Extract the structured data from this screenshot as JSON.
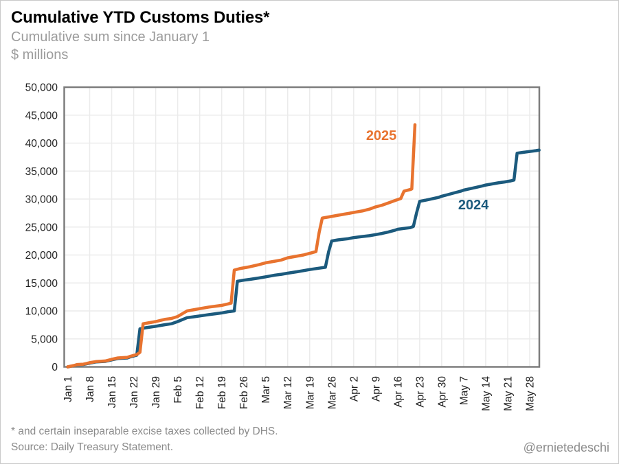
{
  "header": {
    "title": "Cumulative YTD Customs Duties*",
    "subtitle": "Cumulative sum since January 1",
    "units": "$ millions"
  },
  "footer": {
    "footnote": "* and certain inseparable excise taxes collected by DHS.",
    "source": "Source: Daily Treasury Statement.",
    "credit": "@ernietedeschi"
  },
  "chart_data": {
    "type": "line",
    "title": "Cumulative YTD Customs Duties*",
    "xlabel": "",
    "ylabel": "$ millions",
    "x_unit": "days since Jan 1",
    "xlim_days": [
      -1,
      150
    ],
    "ylim": [
      0,
      50000
    ],
    "grid": true,
    "legend_position": "inline-annotations",
    "x_tick_days": [
      0,
      7,
      14,
      21,
      28,
      35,
      42,
      49,
      56,
      63,
      70,
      77,
      84,
      91,
      98,
      105,
      112,
      119,
      126,
      133,
      140,
      147
    ],
    "x_tick_labels": [
      "Jan 1",
      "Jan 8",
      "Jan 15",
      "Jan 22",
      "Jan 29",
      "Feb 5",
      "Feb 12",
      "Feb 19",
      "Feb 26",
      "Mar 5",
      "Mar 12",
      "Mar 19",
      "Mar 26",
      "Apr 2",
      "Apr 9",
      "Apr 16",
      "Apr 23",
      "Apr 30",
      "May 7",
      "May 14",
      "May 21",
      "May 28"
    ],
    "y_ticks": [
      0,
      5000,
      10000,
      15000,
      20000,
      25000,
      30000,
      35000,
      40000,
      45000,
      50000
    ],
    "y_tick_labels": [
      "0",
      "5,000",
      "10,000",
      "15,000",
      "20,000",
      "25,000",
      "30,000",
      "35,000",
      "40,000",
      "45,000",
      "50,000"
    ],
    "style": {
      "grid_color": "#ebebeb",
      "border_color": "#7d7d7d",
      "tick_label_color": "#222222",
      "color_2025": "#e8732f",
      "color_2024": "#1b5a7d"
    },
    "annotations": [
      {
        "text": "2025",
        "day": 99.8,
        "value": 41400,
        "color": "#e8732f"
      },
      {
        "text": "2024",
        "day": 129.1,
        "value": 29000,
        "color": "#1b5a7d"
      }
    ],
    "series": [
      {
        "name": "2024",
        "color": "#1b5a7d",
        "points": [
          [
            0,
            0
          ],
          [
            2,
            220
          ],
          [
            3,
            380
          ],
          [
            5,
            430
          ],
          [
            7,
            680
          ],
          [
            9,
            880
          ],
          [
            12,
            980
          ],
          [
            14,
            1250
          ],
          [
            16,
            1500
          ],
          [
            19,
            1600
          ],
          [
            20,
            1800
          ],
          [
            22,
            2100
          ],
          [
            23,
            6800
          ],
          [
            25,
            7000
          ],
          [
            28,
            7250
          ],
          [
            31,
            7550
          ],
          [
            33,
            7700
          ],
          [
            35,
            8100
          ],
          [
            38,
            8800
          ],
          [
            40,
            8950
          ],
          [
            42,
            9100
          ],
          [
            45,
            9350
          ],
          [
            47,
            9500
          ],
          [
            49,
            9650
          ],
          [
            51,
            9850
          ],
          [
            53,
            10000
          ],
          [
            54,
            15300
          ],
          [
            56,
            15500
          ],
          [
            58,
            15650
          ],
          [
            61,
            15900
          ],
          [
            63,
            16100
          ],
          [
            66,
            16400
          ],
          [
            68,
            16550
          ],
          [
            70,
            16750
          ],
          [
            73,
            17000
          ],
          [
            75,
            17200
          ],
          [
            77,
            17400
          ],
          [
            80,
            17650
          ],
          [
            82,
            17800
          ],
          [
            83,
            20500
          ],
          [
            84,
            22500
          ],
          [
            86,
            22700
          ],
          [
            89,
            22900
          ],
          [
            91,
            23100
          ],
          [
            93,
            23250
          ],
          [
            96,
            23450
          ],
          [
            98,
            23650
          ],
          [
            100,
            23850
          ],
          [
            102,
            24100
          ],
          [
            104,
            24400
          ],
          [
            105,
            24600
          ],
          [
            107,
            24750
          ],
          [
            109,
            24900
          ],
          [
            110,
            25100
          ],
          [
            111,
            27500
          ],
          [
            112,
            29600
          ],
          [
            114,
            29800
          ],
          [
            116,
            30050
          ],
          [
            118,
            30300
          ],
          [
            119,
            30500
          ],
          [
            121,
            30800
          ],
          [
            123,
            31100
          ],
          [
            125,
            31400
          ],
          [
            126,
            31600
          ],
          [
            128,
            31850
          ],
          [
            130,
            32100
          ],
          [
            132,
            32350
          ],
          [
            133,
            32500
          ],
          [
            135,
            32700
          ],
          [
            137,
            32900
          ],
          [
            139,
            33050
          ],
          [
            141,
            33250
          ],
          [
            142,
            33400
          ],
          [
            143,
            38200
          ],
          [
            145,
            38350
          ],
          [
            147,
            38500
          ],
          [
            149,
            38650
          ],
          [
            150,
            38750
          ]
        ]
      },
      {
        "name": "2025",
        "color": "#e8732f",
        "points": [
          [
            0,
            0
          ],
          [
            2,
            250
          ],
          [
            3,
            420
          ],
          [
            5,
            480
          ],
          [
            7,
            750
          ],
          [
            9,
            950
          ],
          [
            12,
            1050
          ],
          [
            14,
            1350
          ],
          [
            16,
            1600
          ],
          [
            19,
            1700
          ],
          [
            20,
            1900
          ],
          [
            22,
            2200
          ],
          [
            23,
            2600
          ],
          [
            24,
            7700
          ],
          [
            26,
            7900
          ],
          [
            28,
            8100
          ],
          [
            31,
            8500
          ],
          [
            33,
            8650
          ],
          [
            35,
            9000
          ],
          [
            38,
            10000
          ],
          [
            40,
            10200
          ],
          [
            42,
            10400
          ],
          [
            45,
            10700
          ],
          [
            47,
            10850
          ],
          [
            49,
            11000
          ],
          [
            51,
            11250
          ],
          [
            52,
            11400
          ],
          [
            53,
            17300
          ],
          [
            55,
            17600
          ],
          [
            58,
            17900
          ],
          [
            61,
            18300
          ],
          [
            63,
            18600
          ],
          [
            66,
            18900
          ],
          [
            68,
            19100
          ],
          [
            70,
            19500
          ],
          [
            73,
            19800
          ],
          [
            75,
            20000
          ],
          [
            77,
            20300
          ],
          [
            79,
            20600
          ],
          [
            80,
            24000
          ],
          [
            81,
            26600
          ],
          [
            83,
            26800
          ],
          [
            86,
            27100
          ],
          [
            88,
            27300
          ],
          [
            90,
            27500
          ],
          [
            92,
            27700
          ],
          [
            94,
            27900
          ],
          [
            96,
            28200
          ],
          [
            98,
            28600
          ],
          [
            100,
            28900
          ],
          [
            102,
            29300
          ],
          [
            104,
            29700
          ],
          [
            105,
            29900
          ],
          [
            106,
            30100
          ],
          [
            107,
            31400
          ],
          [
            109,
            31700
          ],
          [
            109.5,
            31800
          ],
          [
            110.5,
            43300
          ]
        ]
      }
    ]
  }
}
